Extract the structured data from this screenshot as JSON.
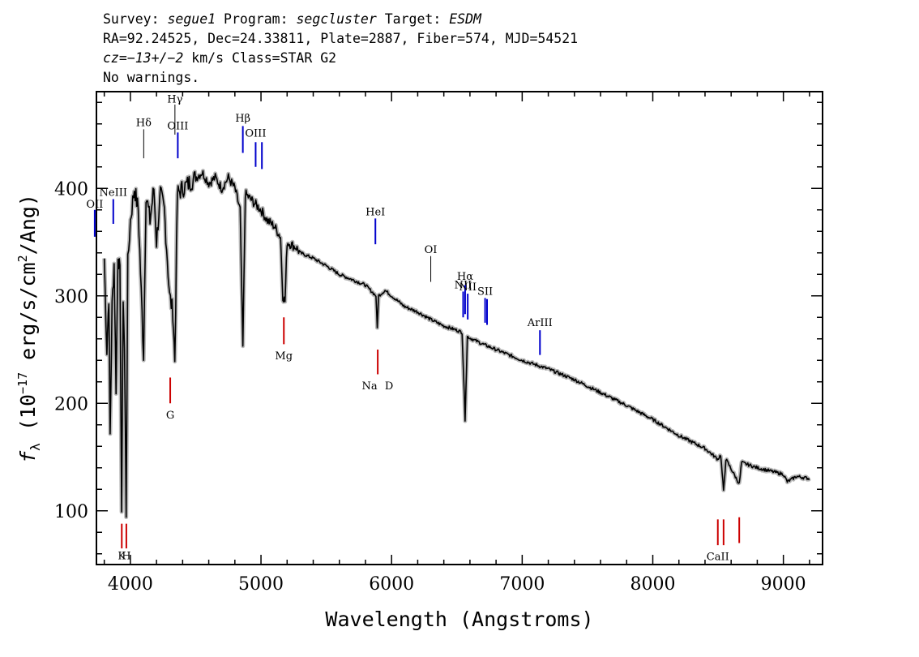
{
  "header": {
    "survey_label": "Survey:",
    "survey": "segue1",
    "program_label": "Program:",
    "program": "segcluster",
    "target_label": "Target:",
    "target": "ESDM",
    "line2": "RA=92.24525, Dec=24.33811, Plate=2887, Fiber=574, MJD=54521",
    "cz_label": "cz=",
    "cz_value": "−13+/−2",
    "cz_rest": " km/s Class=STAR G2",
    "line4": "No warnings."
  },
  "chart_data": {
    "type": "line",
    "xlabel": "Wavelength (Angstroms)",
    "ylabel": "f_λ (10^-17 erg/s/cm^2/Ang)",
    "xlim": [
      3740,
      9300
    ],
    "ylim": [
      50,
      490
    ],
    "x_ticks": [
      4000,
      5000,
      6000,
      7000,
      8000,
      9000
    ],
    "y_ticks": [
      100,
      200,
      300,
      400
    ],
    "grid": false,
    "series": [
      {
        "color": "#000000",
        "points": [
          [
            3800,
            335
          ],
          [
            3820,
            250
          ],
          [
            3835,
            300
          ],
          [
            3845,
            170
          ],
          [
            3860,
            290
          ],
          [
            3875,
            330
          ],
          [
            3890,
            215
          ],
          [
            3905,
            340
          ],
          [
            3920,
            320
          ],
          [
            3933,
            100
          ],
          [
            3945,
            300
          ],
          [
            3955,
            250
          ],
          [
            3968,
            98
          ],
          [
            3980,
            330
          ],
          [
            4000,
            370
          ],
          [
            4030,
            400
          ],
          [
            4060,
            380
          ],
          [
            4101,
            245
          ],
          [
            4120,
            395
          ],
          [
            4150,
            370
          ],
          [
            4180,
            400
          ],
          [
            4200,
            350
          ],
          [
            4230,
            395
          ],
          [
            4260,
            380
          ],
          [
            4300,
            300
          ],
          [
            4325,
            285
          ],
          [
            4340,
            240
          ],
          [
            4360,
            395
          ],
          [
            4400,
            400
          ],
          [
            4450,
            405
          ],
          [
            4500,
            410
          ],
          [
            4550,
            415
          ],
          [
            4600,
            405
          ],
          [
            4650,
            410
          ],
          [
            4700,
            400
          ],
          [
            4750,
            410
          ],
          [
            4800,
            400
          ],
          [
            4840,
            380
          ],
          [
            4861,
            252
          ],
          [
            4880,
            395
          ],
          [
            4920,
            390
          ],
          [
            4960,
            385
          ],
          [
            5000,
            380
          ],
          [
            5050,
            370
          ],
          [
            5100,
            365
          ],
          [
            5150,
            355
          ],
          [
            5167,
            300
          ],
          [
            5184,
            295
          ],
          [
            5200,
            350
          ],
          [
            5270,
            345
          ],
          [
            5300,
            340
          ],
          [
            5400,
            335
          ],
          [
            5500,
            328
          ],
          [
            5600,
            320
          ],
          [
            5700,
            315
          ],
          [
            5800,
            310
          ],
          [
            5880,
            300
          ],
          [
            5890,
            270
          ],
          [
            5900,
            300
          ],
          [
            5950,
            305
          ],
          [
            6000,
            300
          ],
          [
            6100,
            290
          ],
          [
            6200,
            285
          ],
          [
            6300,
            278
          ],
          [
            6400,
            272
          ],
          [
            6500,
            268
          ],
          [
            6540,
            266
          ],
          [
            6563,
            185
          ],
          [
            6580,
            262
          ],
          [
            6700,
            255
          ],
          [
            6800,
            250
          ],
          [
            6900,
            245
          ],
          [
            7000,
            240
          ],
          [
            7200,
            232
          ],
          [
            7400,
            222
          ],
          [
            7600,
            210
          ],
          [
            7800,
            198
          ],
          [
            8000,
            185
          ],
          [
            8200,
            170
          ],
          [
            8400,
            158
          ],
          [
            8498,
            148
          ],
          [
            8520,
            152
          ],
          [
            8542,
            118
          ],
          [
            8560,
            148
          ],
          [
            8662,
            125
          ],
          [
            8680,
            145
          ],
          [
            8800,
            140
          ],
          [
            9000,
            134
          ],
          [
            9030,
            127
          ],
          [
            9100,
            132
          ],
          [
            9200,
            130
          ]
        ]
      }
    ],
    "line_markers": [
      {
        "label": "OII",
        "x": 3727,
        "y": [
          355,
          380
        ],
        "color": "#0000cc",
        "label_y": 382
      },
      {
        "label": "NeIII",
        "x": 3869,
        "y": [
          367,
          390
        ],
        "color": "#0000cc",
        "label_y": 393
      },
      {
        "label": "Hδ",
        "x": 4102,
        "y": [
          428,
          455
        ],
        "color": "#000000",
        "label_y": 458
      },
      {
        "label": "Hγ",
        "x": 4341,
        "y": [
          450,
          478
        ],
        "color": "#000000",
        "label_y": 480
      },
      {
        "label": "OIII",
        "x": 4363,
        "y": [
          428,
          452
        ],
        "color": "#0000cc",
        "label_y": 455
      },
      {
        "label": "Hβ",
        "x": 4861,
        "y": [
          433,
          458
        ],
        "color": "#0000cc",
        "label_y": 462
      },
      {
        "label": "OIII",
        "x": 4959,
        "y": [
          420,
          443
        ],
        "color": "#0000cc",
        "label_y": 448
      },
      {
        "label": "",
        "x": 5007,
        "y": [
          418,
          443
        ],
        "color": "#0000cc",
        "label_y": null
      },
      {
        "label": "HeI",
        "x": 5876,
        "y": [
          348,
          372
        ],
        "color": "#0000cc",
        "label_y": 375
      },
      {
        "label": "OI",
        "x": 6300,
        "y": [
          313,
          337
        ],
        "color": "#000000",
        "label_y": 340
      },
      {
        "label": "NII",
        "x": 6548,
        "y": [
          280,
          304
        ],
        "color": "#0000cc",
        "label_y": 307
      },
      {
        "label": "Hα",
        "x": 6563,
        "y": [
          283,
          310
        ],
        "color": "#0000cc",
        "label_y": 315
      },
      {
        "label": "NII",
        "x": 6583,
        "y": [
          278,
          302
        ],
        "color": "#0000cc",
        "label_y": 305
      },
      {
        "label": "SII",
        "x": 6716,
        "y": [
          275,
          298
        ],
        "color": "#0000cc",
        "label_y": 301
      },
      {
        "label": "",
        "x": 6731,
        "y": [
          273,
          297
        ],
        "color": "#0000cc",
        "label_y": null
      },
      {
        "label": "ArIII",
        "x": 7136,
        "y": [
          245,
          268
        ],
        "color": "#0000cc",
        "label_y": 272
      },
      {
        "label": "K",
        "x": 3934,
        "y": [
          65,
          88
        ],
        "color": "#cc0000",
        "label_y": 55
      },
      {
        "label": "H",
        "x": 3969,
        "y": [
          65,
          88
        ],
        "color": "#cc0000",
        "label_y": 55
      },
      {
        "label": "G",
        "x": 4305,
        "y": [
          200,
          224
        ],
        "color": "#cc0000",
        "label_y": 186
      },
      {
        "label": "Mg",
        "x": 5175,
        "y": [
          255,
          280
        ],
        "color": "#cc0000",
        "label_y": 241
      },
      {
        "label": "Na",
        "x": 5894,
        "y": [
          227,
          250
        ],
        "color": "#cc0000",
        "label_y": 213
      },
      {
        "label": "D",
        "x": 5894,
        "y": null,
        "color": "#cc0000",
        "label_y": 213
      },
      {
        "label": "CaII",
        "x": 8498,
        "y": [
          68,
          92
        ],
        "color": "#cc0000",
        "label_y": 54
      },
      {
        "label": "",
        "x": 8542,
        "y": [
          68,
          92
        ],
        "color": "#cc0000",
        "label_y": null
      },
      {
        "label": "",
        "x": 8662,
        "y": [
          70,
          94
        ],
        "color": "#cc0000",
        "label_y": null
      }
    ]
  }
}
